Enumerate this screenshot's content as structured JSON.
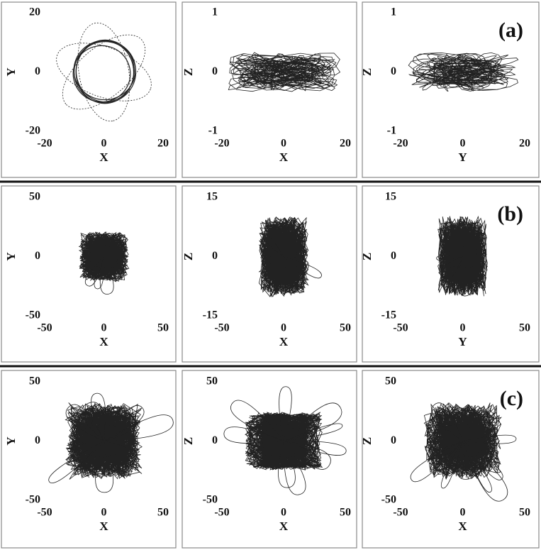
{
  "chart_data": [
    {
      "type": "line",
      "xlabel": "X",
      "ylabel": "Y",
      "xlim": [
        -20,
        20
      ],
      "ylim": [
        -20,
        20
      ],
      "xticks": [
        -20,
        0,
        20
      ],
      "yticks": [
        -20,
        0,
        20
      ]
    },
    {
      "type": "line",
      "xlabel": "X",
      "ylabel": "Z",
      "xlim": [
        -20,
        20
      ],
      "ylim": [
        -1,
        1
      ],
      "xticks": [
        -20,
        0,
        20
      ],
      "yticks": [
        -1,
        0,
        1
      ]
    },
    {
      "type": "line",
      "xlabel": "Y",
      "ylabel": "Z",
      "xlim": [
        -20,
        20
      ],
      "ylim": [
        -1,
        1
      ],
      "xticks": [
        -20,
        0,
        20
      ],
      "yticks": [
        -1,
        0,
        1
      ],
      "annotation": "(a)"
    },
    {
      "type": "line",
      "xlabel": "X",
      "ylabel": "Y",
      "xlim": [
        -50,
        50
      ],
      "ylim": [
        -50,
        50
      ],
      "xticks": [
        -50,
        0,
        50
      ],
      "yticks": [
        -50,
        0,
        50
      ]
    },
    {
      "type": "line",
      "xlabel": "X",
      "ylabel": "Z",
      "xlim": [
        -50,
        50
      ],
      "ylim": [
        -15,
        15
      ],
      "xticks": [
        -50,
        0,
        50
      ],
      "yticks": [
        -15,
        0,
        15
      ]
    },
    {
      "type": "line",
      "xlabel": "Y",
      "ylabel": "Z",
      "xlim": [
        -50,
        50
      ],
      "ylim": [
        -15,
        15
      ],
      "xticks": [
        -50,
        0,
        50
      ],
      "yticks": [
        -15,
        0,
        15
      ],
      "annotation": "(b)"
    },
    {
      "type": "line",
      "xlabel": "X",
      "ylabel": "Y",
      "xlim": [
        -50,
        50
      ],
      "ylim": [
        -50,
        50
      ],
      "xticks": [
        -50,
        0,
        50
      ],
      "yticks": [
        -50,
        0,
        50
      ]
    },
    {
      "type": "line",
      "xlabel": "X",
      "ylabel": "Z",
      "xlim": [
        -50,
        50
      ],
      "ylim": [
        -50,
        50
      ],
      "xticks": [
        -50,
        0,
        50
      ],
      "yticks": [
        -50,
        0,
        50
      ]
    },
    {
      "type": "line",
      "xlabel": "X",
      "ylabel": "Z",
      "xlim": [
        -50,
        50
      ],
      "ylim": [
        -50,
        50
      ],
      "xticks": [
        -50,
        0,
        50
      ],
      "yticks": [
        -50,
        0,
        50
      ],
      "annotation": "(c)"
    }
  ]
}
